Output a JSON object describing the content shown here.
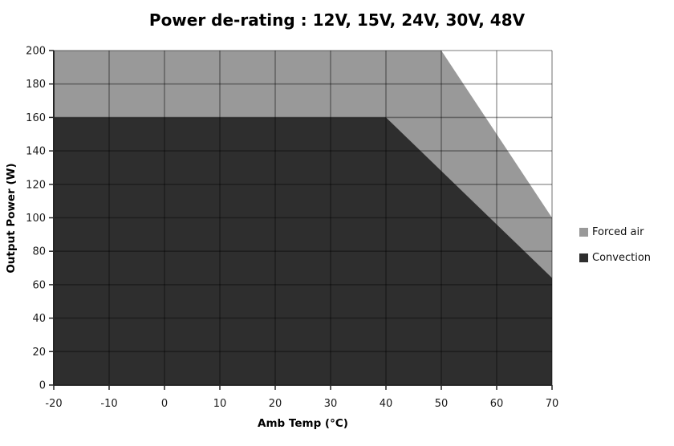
{
  "page": {
    "background": "#ffffff"
  },
  "chart_data": {
    "type": "area",
    "title": "Power de-rating : 12V, 15V, 24V, 30V, 48V",
    "xlabel": "Amb Temp (°C)",
    "ylabel": "Output Power (W)",
    "xlim": [
      -20,
      70
    ],
    "ylim": [
      0,
      200
    ],
    "x_ticks": [
      -20,
      -10,
      0,
      10,
      20,
      30,
      40,
      50,
      60,
      70
    ],
    "y_ticks": [
      0,
      20,
      40,
      60,
      80,
      100,
      120,
      140,
      160,
      180,
      200
    ],
    "grid": true,
    "legend_position": "middle-right",
    "series": [
      {
        "name": "Forced air",
        "color": "#999999",
        "fill_to": 0,
        "points": [
          [
            -20,
            200
          ],
          [
            50,
            200
          ],
          [
            70,
            100
          ]
        ]
      },
      {
        "name": "Convection",
        "color": "#2e2e2e",
        "fill_to": 0,
        "points": [
          [
            -20,
            160
          ],
          [
            40,
            160
          ],
          [
            70,
            64
          ]
        ]
      }
    ],
    "colors": {
      "axis": "#262626",
      "gridline": "rgba(0,0,0,0.35)",
      "tick_text": "#1a1a1a",
      "plot_bg": "#ffffff"
    }
  }
}
